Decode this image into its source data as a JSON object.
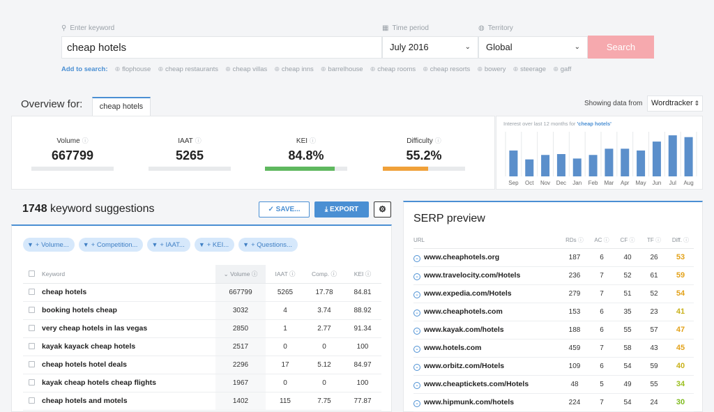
{
  "search": {
    "keyword_label": "Enter keyword",
    "keyword_value": "cheap hotels",
    "time_label": "Time period",
    "time_value": "July 2016",
    "territory_label": "Territory",
    "territory_value": "Global",
    "search_button": "Search",
    "add_to_search_label": "Add to search:",
    "suggestions": [
      "flophouse",
      "cheap restaurants",
      "cheap villas",
      "cheap inns",
      "barrelhouse",
      "cheap rooms",
      "cheap resorts",
      "bowery",
      "steerage",
      "gaff"
    ]
  },
  "overview": {
    "title": "Overview for:",
    "tab": "cheap hotels",
    "showing_label": "Showing data from",
    "source": "Wordtracker",
    "metrics": [
      {
        "label": "Volume",
        "value": "667799",
        "fraction": 0,
        "color": "#e8eaec"
      },
      {
        "label": "IAAT",
        "value": "5265",
        "fraction": 0,
        "color": "#e8eaec"
      },
      {
        "label": "KEI",
        "value": "84.8%",
        "fraction": 0.848,
        "color": "#5fb85f"
      },
      {
        "label": "Difficulty",
        "value": "55.2%",
        "fraction": 0.552,
        "color": "#f0a13a"
      }
    ]
  },
  "chart_data": {
    "type": "bar",
    "title": "Interest over last 12 months for",
    "title_keyword": "'cheap hotels'",
    "categories": [
      "Sep",
      "Oct",
      "Nov",
      "Dec",
      "Jan",
      "Feb",
      "Mar",
      "Apr",
      "May",
      "Jun",
      "Jul",
      "Aug"
    ],
    "values": [
      58,
      38,
      48,
      50,
      40,
      48,
      62,
      62,
      58,
      78,
      92,
      88
    ],
    "ylim": [
      0,
      100
    ],
    "color": "#5b8fcb",
    "grid": true
  },
  "keywords": {
    "count": "1748",
    "count_label": "keyword suggestions",
    "save_button": "SAVE...",
    "export_button": "EXPORT",
    "filters": [
      "+ Volume...",
      "+ Competition...",
      "+ IAAT...",
      "+ KEI...",
      "+ Questions..."
    ],
    "columns": [
      "Keyword",
      "Volume",
      "IAAT",
      "Comp.",
      "KEI"
    ],
    "rows": [
      {
        "keyword": "cheap hotels",
        "volume": "667799",
        "iaat": "5265",
        "comp": "17.78",
        "kei": "84.81"
      },
      {
        "keyword": "booking hotels cheap",
        "volume": "3032",
        "iaat": "4",
        "comp": "3.74",
        "kei": "88.92"
      },
      {
        "keyword": "very cheap hotels in las vegas",
        "volume": "2850",
        "iaat": "1",
        "comp": "2.77",
        "kei": "91.34"
      },
      {
        "keyword": "kayak kayack cheap hotels",
        "volume": "2517",
        "iaat": "0",
        "comp": "0",
        "kei": "100"
      },
      {
        "keyword": "cheap hotels hotel deals",
        "volume": "2296",
        "iaat": "17",
        "comp": "5.12",
        "kei": "84.97"
      },
      {
        "keyword": "kayak cheap hotels cheap flights",
        "volume": "1967",
        "iaat": "0",
        "comp": "0",
        "kei": "100"
      },
      {
        "keyword": "cheap hotels and motels",
        "volume": "1402",
        "iaat": "115",
        "comp": "7.75",
        "kei": "77.87"
      }
    ]
  },
  "serp": {
    "title": "SERP preview",
    "columns": [
      "URL",
      "RDs",
      "AC",
      "CF",
      "TF",
      "Diff."
    ],
    "rows": [
      {
        "url": "www.cheaphotels.org",
        "rds": "187",
        "ac": "6",
        "cf": "40",
        "tf": "26",
        "diff": "53",
        "color": "#e3a21a"
      },
      {
        "url": "www.travelocity.com/Hotels",
        "rds": "236",
        "ac": "7",
        "cf": "52",
        "tf": "61",
        "diff": "59",
        "color": "#e3a21a"
      },
      {
        "url": "www.expedia.com/Hotels",
        "rds": "279",
        "ac": "7",
        "cf": "51",
        "tf": "52",
        "diff": "54",
        "color": "#e3a21a"
      },
      {
        "url": "www.cheaphotels.com",
        "rds": "153",
        "ac": "6",
        "cf": "35",
        "tf": "23",
        "diff": "41",
        "color": "#c9b11a"
      },
      {
        "url": "www.kayak.com/hotels",
        "rds": "188",
        "ac": "6",
        "cf": "55",
        "tf": "57",
        "diff": "47",
        "color": "#e3a21a"
      },
      {
        "url": "www.hotels.com",
        "rds": "459",
        "ac": "7",
        "cf": "58",
        "tf": "43",
        "diff": "45",
        "color": "#e3a21a"
      },
      {
        "url": "www.orbitz.com/Hotels",
        "rds": "109",
        "ac": "6",
        "cf": "54",
        "tf": "59",
        "diff": "40",
        "color": "#c9b11a"
      },
      {
        "url": "www.cheaptickets.com/Hotels",
        "rds": "48",
        "ac": "5",
        "cf": "49",
        "tf": "55",
        "diff": "34",
        "color": "#9bbf1f"
      },
      {
        "url": "www.hipmunk.com/hotels",
        "rds": "224",
        "ac": "7",
        "cf": "54",
        "tf": "24",
        "diff": "30",
        "color": "#7fba1f"
      }
    ]
  }
}
